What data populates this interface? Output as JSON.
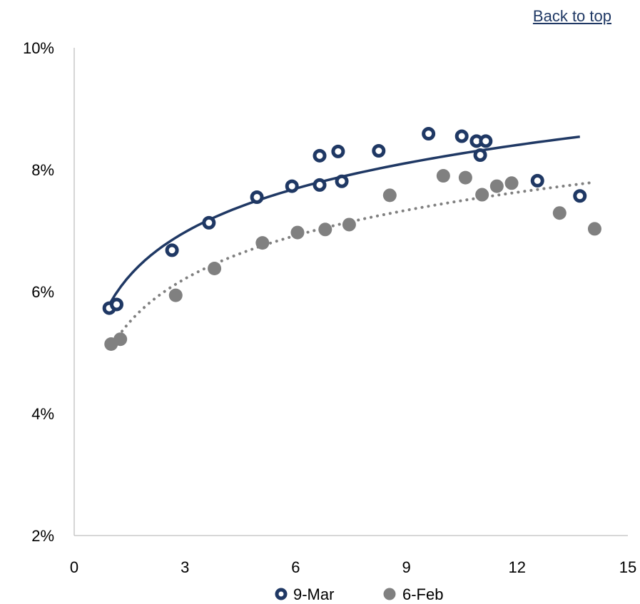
{
  "nav": {
    "back_to_top": "Back to top"
  },
  "colors": {
    "series1": "#1f3864",
    "series2": "#808080",
    "axis": "#bfbfbf"
  },
  "chart_data": {
    "type": "scatter",
    "xlim": [
      0,
      15
    ],
    "ylim": [
      2,
      10
    ],
    "x_ticks": [
      0,
      3,
      6,
      9,
      12,
      15
    ],
    "y_ticks": [
      2,
      4,
      6,
      8,
      10
    ],
    "x_tick_labels": [
      "0",
      "3",
      "6",
      "9",
      "12",
      "15"
    ],
    "y_tick_labels": [
      "2%",
      "4%",
      "6%",
      "8%",
      "10%"
    ],
    "grid": false,
    "legend_position": "bottom",
    "series": [
      {
        "name": "9-Mar",
        "marker": "ring",
        "color": "#1f3864",
        "trendline": {
          "type": "logarithmic",
          "style": "solid",
          "x_range": [
            0.95,
            13.7
          ]
        },
        "points": [
          [
            0.95,
            5.73
          ],
          [
            1.15,
            5.79
          ],
          [
            2.65,
            6.68
          ],
          [
            3.65,
            7.13
          ],
          [
            4.95,
            7.55
          ],
          [
            5.9,
            7.73
          ],
          [
            6.65,
            7.75
          ],
          [
            6.65,
            8.23
          ],
          [
            7.15,
            8.3
          ],
          [
            7.25,
            7.81
          ],
          [
            8.25,
            8.31
          ],
          [
            9.6,
            8.59
          ],
          [
            10.5,
            8.55
          ],
          [
            10.9,
            8.47
          ],
          [
            11.0,
            8.24
          ],
          [
            11.15,
            8.47
          ],
          [
            12.55,
            7.82
          ],
          [
            13.7,
            7.57
          ]
        ]
      },
      {
        "name": "6-Feb",
        "marker": "filled",
        "color": "#808080",
        "trendline": {
          "type": "logarithmic",
          "style": "dotted",
          "x_range": [
            1.0,
            14.1
          ]
        },
        "points": [
          [
            1.0,
            5.14
          ],
          [
            1.25,
            5.22
          ],
          [
            2.75,
            5.94
          ],
          [
            3.8,
            6.38
          ],
          [
            5.1,
            6.8
          ],
          [
            6.05,
            6.97
          ],
          [
            6.8,
            7.02
          ],
          [
            7.45,
            7.1
          ],
          [
            8.55,
            7.58
          ],
          [
            10.0,
            7.9
          ],
          [
            10.6,
            7.87
          ],
          [
            11.05,
            7.59
          ],
          [
            11.45,
            7.73
          ],
          [
            11.85,
            7.78
          ],
          [
            13.15,
            7.29
          ],
          [
            14.1,
            7.03
          ]
        ]
      }
    ]
  }
}
